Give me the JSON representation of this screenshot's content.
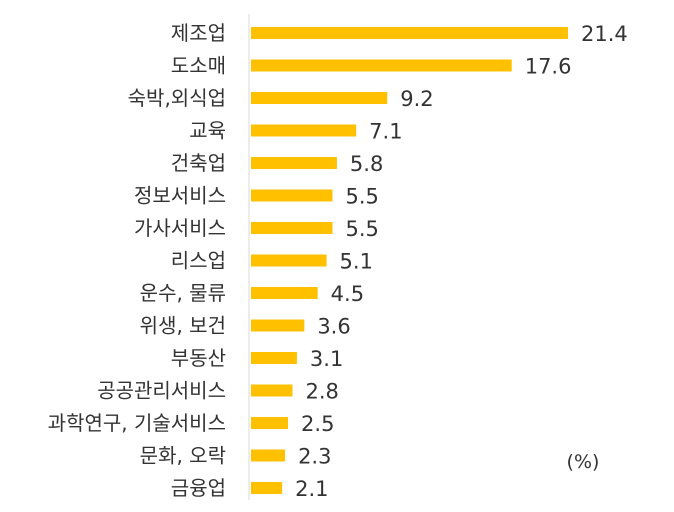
{
  "chart_data": {
    "type": "bar",
    "orientation": "horizontal",
    "categories": [
      "제조업",
      "도소매",
      "숙박,외식업",
      "교육",
      "건축업",
      "정보서비스",
      "가사서비스",
      "리스업",
      "운수, 물류",
      "위생, 보건",
      "부동산",
      "공공관리서비스",
      "과학연구, 기술서비스",
      "문화, 오락",
      "금융업"
    ],
    "values": [
      21.4,
      17.6,
      9.2,
      7.1,
      5.8,
      5.5,
      5.5,
      5.1,
      4.5,
      3.6,
      3.1,
      2.8,
      2.5,
      2.3,
      2.1
    ],
    "value_labels": [
      "21.4",
      "17.6",
      "9.2",
      "7.1",
      "5.8",
      "5.5",
      "5.5",
      "5.1",
      "4.5",
      "3.6",
      "3.1",
      "2.8",
      "2.5",
      "2.3",
      "2.1"
    ],
    "unit": "(%)",
    "bar_color": "#FFC000",
    "xlim": [
      0,
      21.4
    ],
    "grid": false,
    "legend": false
  }
}
